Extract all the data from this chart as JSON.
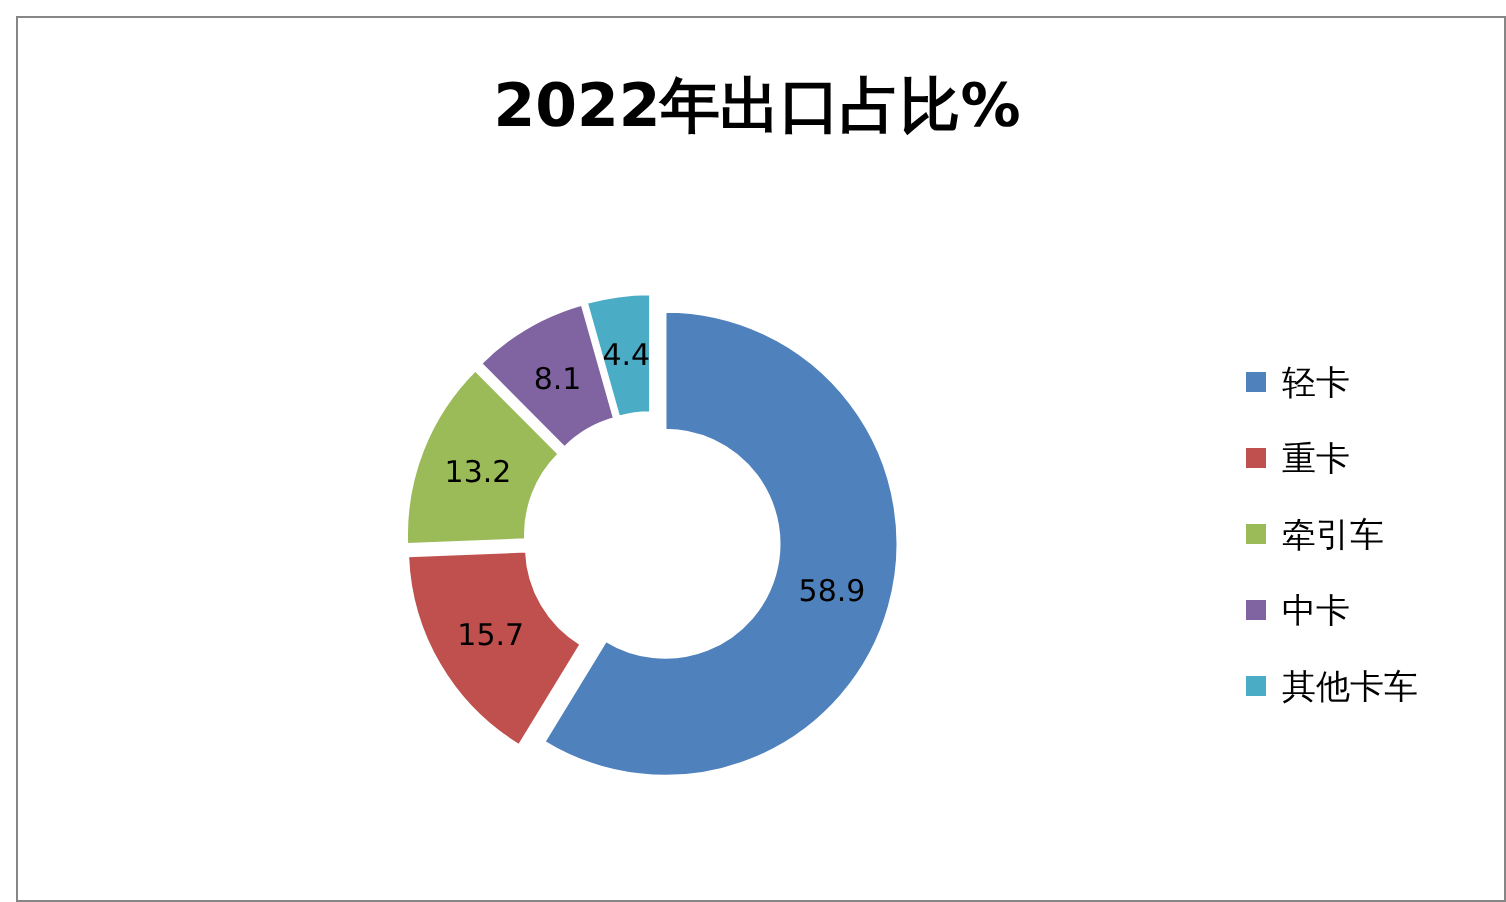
{
  "chart_data": {
    "type": "donut",
    "title": "2022年出口占比%",
    "categories": [
      "轻卡",
      "重卡",
      "牵引车",
      "中卡",
      "其他卡车"
    ],
    "values": [
      58.9,
      15.7,
      13.2,
      8.1,
      4.4
    ],
    "colors": [
      "#4f81bd",
      "#c0504d",
      "#9bbb59",
      "#8064a2",
      "#4bacc6"
    ],
    "data_labels": true,
    "legend": "right"
  }
}
